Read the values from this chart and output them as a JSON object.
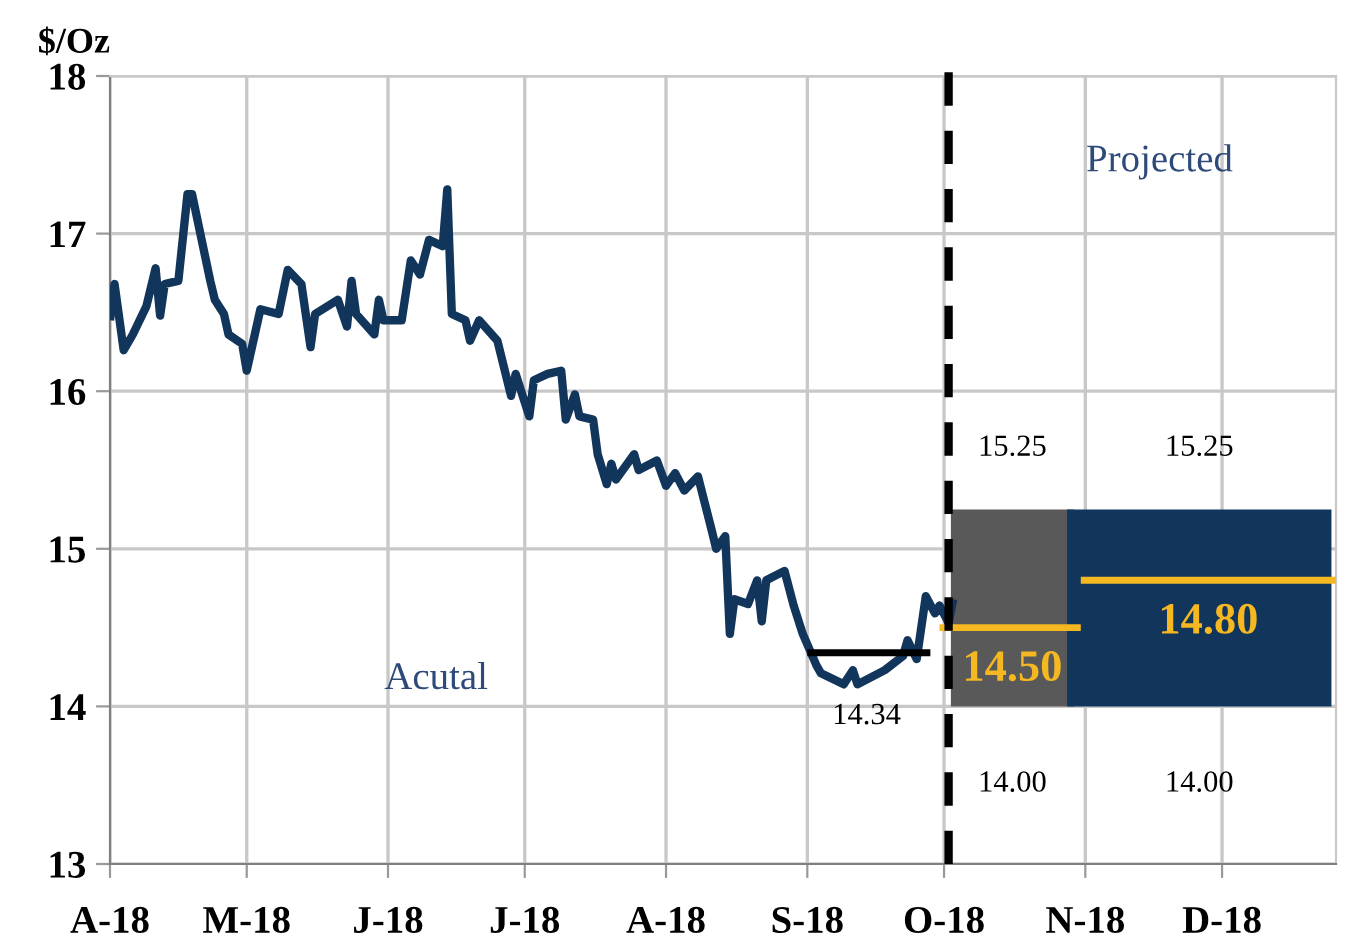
{
  "chart_data": {
    "type": "line",
    "ylabel": "$/Oz",
    "xlim": [
      "2018-04-01",
      "2018-12-26"
    ],
    "xticks": [
      {
        "value": "2018-04-01",
        "label": "A-18"
      },
      {
        "value": "2018-05-01",
        "label": "M-18"
      },
      {
        "value": "2018-06-01",
        "label": "J-18"
      },
      {
        "value": "2018-07-01",
        "label": "J-18"
      },
      {
        "value": "2018-08-01",
        "label": "A-18"
      },
      {
        "value": "2018-09-01",
        "label": "S-18"
      },
      {
        "value": "2018-10-01",
        "label": "O-18"
      },
      {
        "value": "2018-11-01",
        "label": "N-18"
      },
      {
        "value": "2018-12-01",
        "label": "D-18"
      }
    ],
    "ylim": [
      13,
      18
    ],
    "yticks": [
      13,
      14,
      15,
      16,
      17,
      18
    ],
    "grid": true,
    "series": [
      {
        "color": "#12355b",
        "x": [
          "2018-04-01",
          "2018-04-02",
          "2018-04-04",
          "2018-04-06",
          "2018-04-09",
          "2018-04-11",
          "2018-04-12",
          "2018-04-13",
          "2018-04-16",
          "2018-04-18",
          "2018-04-19",
          "2018-04-23",
          "2018-04-24",
          "2018-04-26",
          "2018-04-27",
          "2018-04-30",
          "2018-05-01",
          "2018-05-04",
          "2018-05-08",
          "2018-05-10",
          "2018-05-13",
          "2018-05-15",
          "2018-05-16",
          "2018-05-21",
          "2018-05-23",
          "2018-05-24",
          "2018-05-25",
          "2018-05-29",
          "2018-05-30",
          "2018-05-31",
          "2018-06-04",
          "2018-06-06",
          "2018-06-08",
          "2018-06-10",
          "2018-06-13",
          "2018-06-14",
          "2018-06-15",
          "2018-06-18",
          "2018-06-19",
          "2018-06-21",
          "2018-06-25",
          "2018-06-28",
          "2018-06-29",
          "2018-07-02",
          "2018-07-03",
          "2018-07-06",
          "2018-07-09",
          "2018-07-10",
          "2018-07-12",
          "2018-07-13",
          "2018-07-16",
          "2018-07-17",
          "2018-07-19",
          "2018-07-20",
          "2018-07-21",
          "2018-07-25",
          "2018-07-26",
          "2018-07-30",
          "2018-08-01",
          "2018-08-03",
          "2018-08-05",
          "2018-08-08",
          "2018-08-11",
          "2018-08-12",
          "2018-08-14",
          "2018-08-15",
          "2018-08-16",
          "2018-08-19",
          "2018-08-21",
          "2018-08-22",
          "2018-08-23",
          "2018-08-27",
          "2018-08-29",
          "2018-08-31",
          "2018-09-03",
          "2018-09-04",
          "2018-09-09",
          "2018-09-11",
          "2018-09-12",
          "2018-09-18",
          "2018-09-22",
          "2018-09-23",
          "2018-09-25",
          "2018-09-27",
          "2018-09-29",
          "2018-09-30",
          "2018-10-02",
          "2018-10-03"
        ],
        "values": [
          16.45,
          16.68,
          16.26,
          16.36,
          16.54,
          16.78,
          16.48,
          16.68,
          16.7,
          17.25,
          17.25,
          16.7,
          16.58,
          16.49,
          16.36,
          16.3,
          16.13,
          16.52,
          16.49,
          16.77,
          16.68,
          16.28,
          16.49,
          16.58,
          16.41,
          16.7,
          16.49,
          16.36,
          16.58,
          16.45,
          16.45,
          16.83,
          16.74,
          16.96,
          16.92,
          17.28,
          16.49,
          16.45,
          16.32,
          16.45,
          16.32,
          15.97,
          16.11,
          15.84,
          16.07,
          16.11,
          16.13,
          15.82,
          15.98,
          15.84,
          15.82,
          15.6,
          15.41,
          15.54,
          15.44,
          15.6,
          15.5,
          15.56,
          15.4,
          15.48,
          15.37,
          15.46,
          15.12,
          15.0,
          15.08,
          14.46,
          14.68,
          14.65,
          14.8,
          14.54,
          14.8,
          14.86,
          14.64,
          14.46,
          14.26,
          14.21,
          14.14,
          14.23,
          14.14,
          14.23,
          14.32,
          14.42,
          14.3,
          14.7,
          14.59,
          14.64,
          14.53,
          14.68
        ]
      },
      {
        "type": "bar",
        "x": [
          "2018-10-16",
          "2018-11-26"
        ],
        "base": [
          14.0,
          14.0
        ],
        "values": [
          1.25,
          1.25
        ],
        "colors": [
          "#595959",
          "#12355b"
        ]
      },
      {
        "color": "#000000",
        "x": [
          "2018-09-01",
          "2018-09-14",
          "2018-09-28"
        ],
        "values": [
          14.34,
          14.34,
          14.34
        ],
        "value_labels": [
          null,
          "14.34",
          null
        ]
      },
      {
        "color": "#f5b820",
        "x": [
          "2018-09-30",
          "2018-10-16",
          "2018-10-31"
        ],
        "values": [
          14.5,
          14.5,
          14.5
        ],
        "value_labels": [
          null,
          "14.50",
          null
        ]
      },
      {
        "color": "#f5b820",
        "x": [
          "2018-10-31",
          "2018-11-28",
          "2018-12-26"
        ],
        "values": [
          14.8,
          14.8,
          14.8
        ],
        "value_labels": [
          null,
          "14.80",
          null
        ]
      }
    ],
    "ref_lines": [
      {
        "axis": "x",
        "value": "2018-10-02",
        "color": "#000000",
        "line_style": "dashed"
      }
    ],
    "annotations": [
      {
        "text": "15.25",
        "x": "2018-10-16",
        "y": 15.25
      },
      {
        "text": "14.00",
        "x": "2018-10-16",
        "y": 14.0
      },
      {
        "text": "15.25",
        "x": "2018-11-26",
        "y": 15.25
      },
      {
        "text": "14.00",
        "x": "2018-11-26",
        "y": 14.0
      },
      "Acutal",
      "Projected"
    ]
  }
}
